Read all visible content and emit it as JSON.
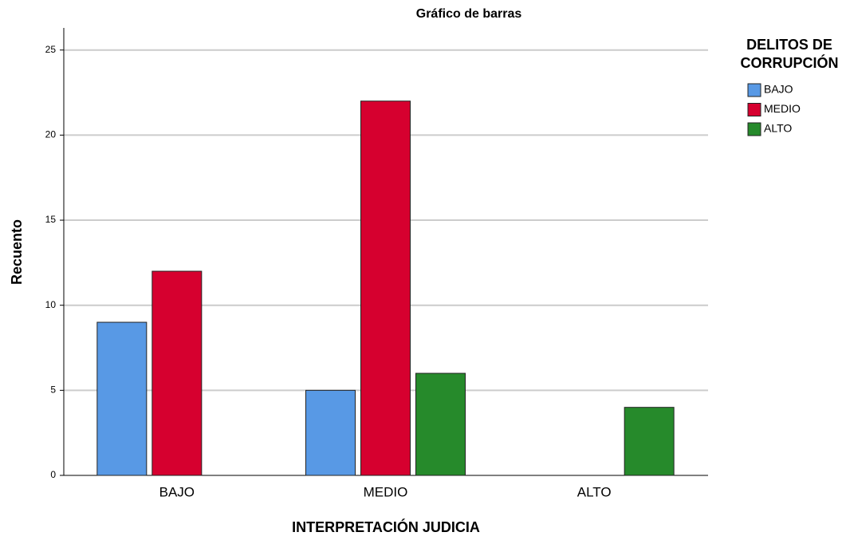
{
  "chart_data": {
    "type": "bar",
    "title": "Gráfico de barras",
    "x_label": "INTERPRETACIÓN JUDICIA",
    "y_label": "Recuento",
    "legend_title": [
      "DELITOS DE",
      "CORRUPCIÓN"
    ],
    "categories": [
      "BAJO",
      "MEDIO",
      "ALTO"
    ],
    "series": [
      {
        "name": "BAJO",
        "color": "#5899e5",
        "values": [
          9,
          5,
          0
        ]
      },
      {
        "name": "MEDIO",
        "color": "#d6002f",
        "values": [
          12,
          22,
          0
        ]
      },
      {
        "name": "ALTO",
        "color": "#268a2b",
        "values": [
          0,
          6,
          4
        ]
      }
    ],
    "ylim": [
      0,
      26.3
    ],
    "yticks": [
      0,
      5,
      10,
      15,
      20,
      25
    ],
    "grid": true,
    "legend": "right"
  }
}
